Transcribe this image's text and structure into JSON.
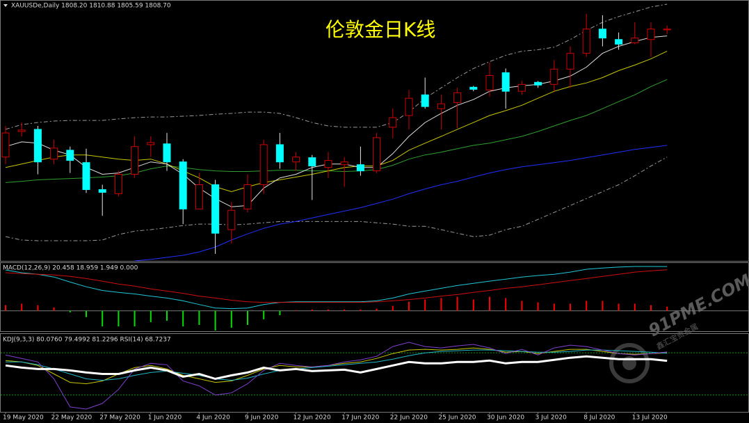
{
  "chart_data": [
    {
      "type": "candlestick",
      "title": "伦敦金日K线",
      "header": "XAUUSDe,Daily  1808.20 1810.88 1805.59 1808.70",
      "categories": [
        "19 May 2020",
        null,
        null,
        "22 May 2020",
        null,
        null,
        "27 May 2020",
        null,
        null,
        "1 Jun 2020",
        null,
        null,
        "4 Jun 2020",
        null,
        null,
        "9 Jun 2020",
        null,
        null,
        "12 Jun 2020",
        null,
        null,
        "17 Jun 2020",
        null,
        null,
        "22 Jun 2020",
        null,
        null,
        "25 Jun 2020",
        null,
        null,
        "30 Jun 2020",
        null,
        null,
        "3 Jul 2020",
        null,
        null,
        "8 Jul 2020",
        null,
        null,
        "13 Jul 2020",
        null,
        null
      ],
      "open": [
        1730.1,
        1745.8,
        1747.1,
        1728.8,
        1734.3,
        1726.7,
        1710.1,
        1707.6,
        1719.5,
        1737.7,
        1738.2,
        1727.1,
        1698.2,
        1713.1,
        1685.5,
        1698.2,
        1713.1,
        1737.7,
        1727.1,
        1729.7,
        1723.7,
        1725.4,
        1725.4,
        1721.6,
        1748.4,
        1755.6,
        1768.3,
        1759.8,
        1763.6,
        1773.0,
        1771.3,
        1781.9,
        1770.5,
        1776.0,
        1774.7,
        1784.1,
        1793.8,
        1808.7,
        1802.3,
        1800.2,
        1802.3,
        1808.2
      ],
      "high": [
        1749.2,
        1751.3,
        1749.2,
        1740.7,
        1736.5,
        1735.2,
        1713.1,
        1721.6,
        1742.8,
        1742.8,
        1744.9,
        1728.8,
        1720.3,
        1716.1,
        1702.5,
        1719.5,
        1740.7,
        1744.9,
        1733.1,
        1731.4,
        1733.1,
        1730.1,
        1736.5,
        1744.9,
        1759.8,
        1771.3,
        1778.9,
        1768.3,
        1772.6,
        1773.8,
        1788.3,
        1784.5,
        1776.8,
        1776.8,
        1789.6,
        1798.1,
        1818.0,
        1817.2,
        1806.6,
        1812.9,
        1812.9,
        1810.88
      ],
      "low": [
        1725.8,
        1742.8,
        1719.5,
        1725.8,
        1720.3,
        1708.0,
        1694.0,
        1705.9,
        1717.3,
        1730.1,
        1721.6,
        1688.9,
        1698.2,
        1670.6,
        1677.0,
        1696.1,
        1707.6,
        1722.9,
        1721.6,
        1703.7,
        1717.3,
        1711.8,
        1718.6,
        1720.3,
        1741.6,
        1747.1,
        1759.8,
        1747.1,
        1747.9,
        1770.5,
        1767.1,
        1759.8,
        1768.3,
        1772.6,
        1770.5,
        1772.6,
        1791.7,
        1798.1,
        1796.0,
        1799.4,
        1791.7,
        1805.59
      ],
      "close": [
        1744.9,
        1746.7,
        1727.1,
        1735.6,
        1728.0,
        1710.1,
        1708.4,
        1719.5,
        1736.5,
        1739.0,
        1727.1,
        1698.2,
        1713.1,
        1683.3,
        1697.4,
        1713.1,
        1737.7,
        1727.1,
        1730.1,
        1724.6,
        1728.0,
        1727.1,
        1721.6,
        1742.0,
        1754.3,
        1766.2,
        1761.1,
        1762.8,
        1769.6,
        1771.7,
        1780.2,
        1770.5,
        1774.7,
        1774.3,
        1784.1,
        1793.8,
        1808.7,
        1803.2,
        1799.4,
        1803.2,
        1808.7,
        1808.7
      ],
      "up_color": "#d00000",
      "down_color": "#00ffff",
      "ylim": [
        1666.3,
        1825.7
      ],
      "series": [
        {
          "color": "#9a9a9a",
          "dashed": true,
          "values": [
            1747.1,
            1750.0,
            1751.3,
            1752.2,
            1752.6,
            1752.6,
            1752.6,
            1753.5,
            1754.3,
            1754.7,
            1754.7,
            1755.2,
            1755.6,
            1756.4,
            1756.9,
            1757.7,
            1757.7,
            1756.9,
            1754.3,
            1751.3,
            1749.2,
            1748.4,
            1748.4,
            1748.4,
            1751.3,
            1757.7,
            1766.2,
            1772.6,
            1778.9,
            1784.5,
            1788.7,
            1792.6,
            1795.1,
            1796.0,
            1797.6,
            1802.3,
            1807.9,
            1812.9,
            1816.4,
            1819.3,
            1822.3,
            1824.0
          ]
        },
        {
          "color": "#9a9a9a",
          "dashed": true,
          "values": [
            1681.2,
            1679.1,
            1678.7,
            1678.7,
            1678.7,
            1678.7,
            1679.1,
            1682.5,
            1684.6,
            1685.5,
            1686.7,
            1688.0,
            1688.9,
            1688.9,
            1688.4,
            1688.9,
            1689.7,
            1690.5,
            1690.5,
            1690.5,
            1690.5,
            1690.5,
            1690.5,
            1689.7,
            1688.9,
            1687.6,
            1687.6,
            1685.5,
            1683.3,
            1681.2,
            1682.1,
            1685.5,
            1687.6,
            1691.8,
            1696.1,
            1700.3,
            1704.6,
            1708.8,
            1713.1,
            1718.6,
            1724.6,
            1730.1
          ]
        },
        {
          "color": "#2030ff",
          "dashed": false,
          "values": [
            null,
            null,
            null,
            null,
            null,
            null,
            null,
            null,
            1666.3,
            1667.2,
            1668.5,
            1669.7,
            1671.8,
            1674.8,
            1679.1,
            1682.9,
            1686.3,
            1688.9,
            1690.5,
            1692.7,
            1694.8,
            1696.9,
            1699.0,
            1701.6,
            1704.2,
            1707.6,
            1710.5,
            1713.1,
            1715.2,
            1717.8,
            1720.3,
            1722.4,
            1724.1,
            1725.4,
            1726.7,
            1728.0,
            1729.7,
            1731.4,
            1733.1,
            1734.8,
            1736.0,
            1737.3
          ]
        },
        {
          "color": "#30a030",
          "dashed": false,
          "values": [
            1714.4,
            1715.2,
            1716.1,
            1716.5,
            1716.9,
            1717.3,
            1717.8,
            1718.6,
            1720.3,
            1722.9,
            1724.6,
            1723.7,
            1722.4,
            1721.6,
            1721.2,
            1721.2,
            1721.6,
            1722.0,
            1722.0,
            1721.6,
            1721.6,
            1721.2,
            1721.6,
            1722.4,
            1725.0,
            1728.8,
            1731.4,
            1733.1,
            1735.2,
            1737.3,
            1738.6,
            1740.7,
            1742.8,
            1745.8,
            1749.2,
            1752.6,
            1755.6,
            1759.8,
            1764.1,
            1768.3,
            1773.4,
            1777.7
          ]
        },
        {
          "color": "#c8c800",
          "dashed": false,
          "values": [
            1723.7,
            1725.8,
            1728.0,
            1730.1,
            1731.4,
            1731.4,
            1730.1,
            1728.8,
            1728.0,
            1728.8,
            1725.8,
            1721.6,
            1717.3,
            1711.8,
            1708.8,
            1711.8,
            1714.4,
            1716.1,
            1717.8,
            1719.5,
            1721.6,
            1723.7,
            1724.6,
            1724.6,
            1728.0,
            1734.3,
            1738.6,
            1742.8,
            1747.1,
            1751.3,
            1755.6,
            1758.6,
            1761.9,
            1766.2,
            1770.5,
            1773.4,
            1775.6,
            1778.9,
            1783.2,
            1786.6,
            1790.4,
            1795.1
          ]
        },
        {
          "color": "#e0e0e0",
          "dashed": false,
          "values": [
            1736.5,
            1739.4,
            1738.6,
            1734.3,
            1731.4,
            1723.7,
            1719.5,
            1720.3,
            1723.7,
            1727.1,
            1725.8,
            1719.5,
            1711.0,
            1704.6,
            1699.5,
            1700.3,
            1711.0,
            1717.3,
            1719.5,
            1723.7,
            1725.8,
            1725.8,
            1723.7,
            1723.7,
            1732.2,
            1742.8,
            1751.3,
            1756.9,
            1761.9,
            1765.4,
            1770.5,
            1772.6,
            1773.8,
            1774.7,
            1776.8,
            1779.8,
            1785.3,
            1793.8,
            1798.1,
            1801.1,
            1803.6,
            1804.5
          ]
        }
      ]
    },
    {
      "type": "macd",
      "label": "MACD(12,26,9) 20.458 18.959 1.949 0.000",
      "ylim": [
        -9.4,
        22.1
      ],
      "up_color": "#ff0000",
      "down_color": "#00e000",
      "bars": [
        2.6,
        3.3,
        2.6,
        1.6,
        -0.7,
        -2.9,
        -7.2,
        -7.2,
        -7.2,
        -5.2,
        -4.6,
        -7.2,
        -6.5,
        -9.1,
        -7.8,
        -6.5,
        -3.9,
        -2.0,
        0.3,
        0.6,
        0.6,
        0.6,
        0.6,
        1.0,
        2.3,
        4.2,
        5.2,
        5.9,
        6.5,
        5.2,
        6.5,
        5.9,
        4.6,
        3.9,
        3.3,
        3.3,
        4.6,
        4.6,
        3.3,
        3.3,
        2.6,
        1.949
      ],
      "series": [
        {
          "color": "#20c8d8",
          "values": [
            18.9,
            17.6,
            16.9,
            15.6,
            13.3,
            11.1,
            9.4,
            8.5,
            7.8,
            6.8,
            5.9,
            4.6,
            2.9,
            1.3,
            1.0,
            1.3,
            2.9,
            3.9,
            4.2,
            4.2,
            4.2,
            4.2,
            4.2,
            4.6,
            5.9,
            7.8,
            9.1,
            10.4,
            11.7,
            12.7,
            13.7,
            14.6,
            15.6,
            16.3,
            16.9,
            17.9,
            19.2,
            19.8,
            20.2,
            20.5,
            20.5,
            20.458
          ]
        },
        {
          "color": "#d01010",
          "values": [
            17.6,
            17.2,
            16.9,
            16.6,
            15.9,
            14.9,
            13.7,
            12.4,
            11.4,
            10.1,
            9.1,
            8.1,
            6.8,
            5.9,
            4.9,
            4.2,
            3.9,
            3.9,
            3.9,
            3.9,
            3.9,
            3.9,
            3.9,
            4.2,
            4.6,
            5.2,
            5.9,
            6.8,
            7.5,
            8.5,
            9.4,
            10.4,
            11.1,
            12.0,
            13.0,
            14.0,
            14.9,
            15.9,
            16.9,
            17.9,
            18.5,
            18.959
          ]
        }
      ]
    },
    {
      "type": "line",
      "label": "KDJ(9,3,3) 80.0760 79.4992 81.2296  RSI(14) 68.7237",
      "ylim": [
        -4,
        106.9
      ],
      "levels": [
        20,
        80
      ],
      "level_color": "#00a000",
      "series": [
        {
          "color": "#c8c800",
          "width": 1,
          "values": [
            69,
            67,
            62,
            50,
            38,
            36,
            40,
            50,
            59,
            62,
            57,
            48,
            43,
            38,
            40,
            48,
            57,
            62,
            60,
            60,
            62,
            65,
            67,
            72,
            79,
            84,
            85,
            84,
            85,
            87,
            85,
            81,
            82,
            79,
            82,
            85,
            85,
            82,
            79,
            78,
            79,
            80.076
          ]
        },
        {
          "color": "#20b8c8",
          "width": 1,
          "values": [
            67,
            67,
            63,
            57,
            50,
            43,
            41,
            43,
            48,
            52,
            54,
            51,
            48,
            43,
            41,
            44,
            50,
            55,
            57,
            59,
            61,
            63,
            65,
            67,
            71,
            76,
            80,
            82,
            83,
            84,
            84,
            83,
            82,
            81,
            81,
            82,
            84,
            84,
            83,
            82,
            81,
            79.4992
          ]
        },
        {
          "color": "#8040d0",
          "width": 1,
          "values": [
            77,
            72,
            67,
            43,
            3,
            0,
            8,
            28,
            57,
            65,
            63,
            40,
            33,
            20,
            23,
            36,
            55,
            65,
            62,
            60,
            62,
            67,
            70,
            75,
            89,
            95,
            89,
            87,
            90,
            92,
            87,
            79,
            85,
            77,
            87,
            91,
            89,
            84,
            79,
            77,
            79,
            81.2296
          ]
        },
        {
          "color": "#ffffff",
          "width": 3,
          "values": [
            62,
            59,
            57,
            57,
            55,
            52,
            50,
            50,
            55,
            59,
            55,
            46,
            50,
            43,
            48,
            52,
            59,
            55,
            57,
            54,
            55,
            56,
            52,
            57,
            62,
            67,
            65,
            65,
            67,
            67,
            69,
            65,
            67,
            67,
            70,
            73,
            75,
            73,
            71,
            71,
            71,
            68.7237
          ]
        }
      ]
    }
  ],
  "watermark": {
    "text": "91PME.COM",
    "subtext": "鑫汇宝贵金属"
  }
}
